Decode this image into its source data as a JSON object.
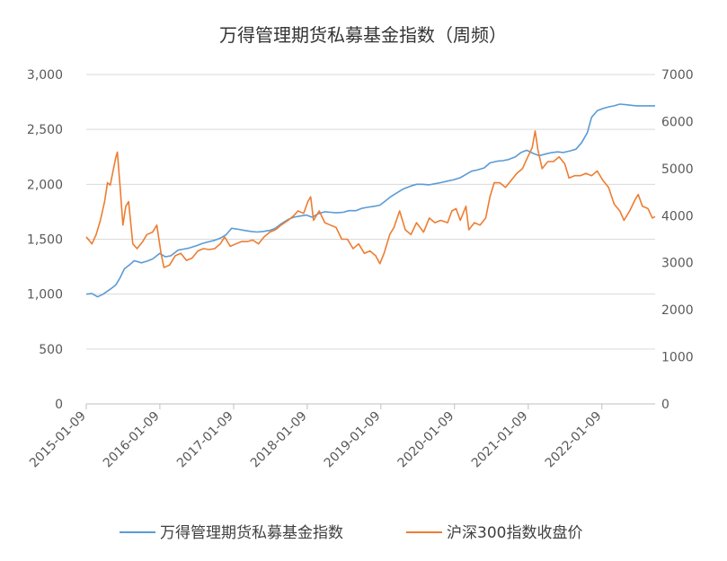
{
  "chart_data": {
    "type": "line",
    "title": "万得管理期货私募基金指数（周频）",
    "legend_position": "bottom",
    "grid": "horizontal",
    "x_tick_labels": [
      "2015-01-09",
      "2016-01-09",
      "2017-01-09",
      "2018-01-09",
      "2019-01-09",
      "2020-01-09",
      "2021-01-09",
      "2022-01-09"
    ],
    "y_left": {
      "range": [
        0,
        3000
      ],
      "ticks": [
        0,
        500,
        1000,
        1500,
        2000,
        2500,
        3000
      ],
      "tick_labels": [
        "0",
        "500",
        "1,000",
        "1,500",
        "2,000",
        "2,500",
        "3,000"
      ]
    },
    "y_right": {
      "range": [
        0,
        7000
      ],
      "ticks": [
        0,
        1000,
        2000,
        3000,
        4000,
        5000,
        6000,
        7000
      ],
      "tick_labels": [
        "0",
        "1000",
        "2000",
        "3000",
        "4000",
        "5000",
        "6000",
        "7000"
      ]
    },
    "series": [
      {
        "name": "万得管理期货私募基金指数",
        "axis": "left",
        "color": "#5B9BD5",
        "points": [
          [
            "2015-01-09",
            1000
          ],
          [
            "2015-02-06",
            1005
          ],
          [
            "2015-03-06",
            975
          ],
          [
            "2015-04-03",
            1000
          ],
          [
            "2015-05-08",
            1045
          ],
          [
            "2015-06-05",
            1085
          ],
          [
            "2015-06-26",
            1150
          ],
          [
            "2015-07-17",
            1230
          ],
          [
            "2015-08-14",
            1270
          ],
          [
            "2015-09-04",
            1305
          ],
          [
            "2015-10-09",
            1285
          ],
          [
            "2015-11-06",
            1300
          ],
          [
            "2015-12-04",
            1320
          ],
          [
            "2016-01-08",
            1370
          ],
          [
            "2016-02-05",
            1340
          ],
          [
            "2016-03-04",
            1350
          ],
          [
            "2016-04-08",
            1400
          ],
          [
            "2016-05-06",
            1410
          ],
          [
            "2016-06-03",
            1420
          ],
          [
            "2016-07-08",
            1440
          ],
          [
            "2016-08-05",
            1460
          ],
          [
            "2016-09-02",
            1475
          ],
          [
            "2016-10-07",
            1490
          ],
          [
            "2016-11-04",
            1510
          ],
          [
            "2016-12-02",
            1540
          ],
          [
            "2016-12-30",
            1600
          ],
          [
            "2017-02-03",
            1590
          ],
          [
            "2017-03-03",
            1580
          ],
          [
            "2017-04-07",
            1570
          ],
          [
            "2017-05-05",
            1565
          ],
          [
            "2017-06-02",
            1570
          ],
          [
            "2017-07-07",
            1580
          ],
          [
            "2017-08-04",
            1600
          ],
          [
            "2017-09-01",
            1640
          ],
          [
            "2017-10-06",
            1680
          ],
          [
            "2017-11-03",
            1700
          ],
          [
            "2017-12-01",
            1710
          ],
          [
            "2018-01-05",
            1720
          ],
          [
            "2018-02-02",
            1700
          ],
          [
            "2018-03-02",
            1730
          ],
          [
            "2018-04-06",
            1750
          ],
          [
            "2018-05-04",
            1745
          ],
          [
            "2018-06-01",
            1740
          ],
          [
            "2018-07-06",
            1745
          ],
          [
            "2018-08-03",
            1760
          ],
          [
            "2018-09-07",
            1760
          ],
          [
            "2018-10-05",
            1780
          ],
          [
            "2018-11-02",
            1790
          ],
          [
            "2018-12-07",
            1800
          ],
          [
            "2019-01-04",
            1810
          ],
          [
            "2019-02-01",
            1850
          ],
          [
            "2019-03-01",
            1890
          ],
          [
            "2019-04-05",
            1930
          ],
          [
            "2019-05-03",
            1960
          ],
          [
            "2019-06-07",
            1985
          ],
          [
            "2019-07-05",
            2000
          ],
          [
            "2019-08-02",
            2000
          ],
          [
            "2019-09-06",
            1995
          ],
          [
            "2019-10-04",
            2005
          ],
          [
            "2019-11-01",
            2015
          ],
          [
            "2019-12-06",
            2030
          ],
          [
            "2020-01-03",
            2040
          ],
          [
            "2020-02-07",
            2060
          ],
          [
            "2020-03-06",
            2090
          ],
          [
            "2020-04-03",
            2120
          ],
          [
            "2020-05-01",
            2130
          ],
          [
            "2020-06-05",
            2150
          ],
          [
            "2020-07-03",
            2195
          ],
          [
            "2020-08-07",
            2210
          ],
          [
            "2020-09-04",
            2215
          ],
          [
            "2020-10-02",
            2225
          ],
          [
            "2020-11-06",
            2250
          ],
          [
            "2020-12-04",
            2290
          ],
          [
            "2021-01-01",
            2310
          ],
          [
            "2021-02-05",
            2280
          ],
          [
            "2021-03-05",
            2260
          ],
          [
            "2021-04-02",
            2275
          ],
          [
            "2021-05-07",
            2290
          ],
          [
            "2021-06-04",
            2295
          ],
          [
            "2021-07-02",
            2290
          ],
          [
            "2021-08-06",
            2305
          ],
          [
            "2021-09-03",
            2320
          ],
          [
            "2021-10-01",
            2380
          ],
          [
            "2021-10-29",
            2470
          ],
          [
            "2021-11-19",
            2610
          ],
          [
            "2021-12-17",
            2670
          ],
          [
            "2022-01-14",
            2690
          ],
          [
            "2022-02-11",
            2705
          ],
          [
            "2022-03-11",
            2715
          ],
          [
            "2022-04-08",
            2730
          ],
          [
            "2022-05-06",
            2725
          ],
          [
            "2022-06-03",
            2720
          ],
          [
            "2022-07-01",
            2715
          ],
          [
            "2022-08-05",
            2715
          ],
          [
            "2022-09-02",
            2715
          ],
          [
            "2022-09-30",
            2715
          ]
        ]
      },
      {
        "name": "沪深300指数收盘价",
        "axis": "right",
        "color": "#ED7D31",
        "points": [
          [
            "2015-01-09",
            3550
          ],
          [
            "2015-02-06",
            3400
          ],
          [
            "2015-02-27",
            3600
          ],
          [
            "2015-03-20",
            3900
          ],
          [
            "2015-04-10",
            4300
          ],
          [
            "2015-04-24",
            4700
          ],
          [
            "2015-05-08",
            4650
          ],
          [
            "2015-05-22",
            4950
          ],
          [
            "2015-06-05",
            5250
          ],
          [
            "2015-06-12",
            5350
          ],
          [
            "2015-06-26",
            4600
          ],
          [
            "2015-07-10",
            3800
          ],
          [
            "2015-07-24",
            4200
          ],
          [
            "2015-08-07",
            4300
          ],
          [
            "2015-08-28",
            3400
          ],
          [
            "2015-09-18",
            3300
          ],
          [
            "2015-10-16",
            3450
          ],
          [
            "2015-11-06",
            3600
          ],
          [
            "2015-12-04",
            3650
          ],
          [
            "2015-12-25",
            3800
          ],
          [
            "2016-01-15",
            3200
          ],
          [
            "2016-01-29",
            2900
          ],
          [
            "2016-02-26",
            2950
          ],
          [
            "2016-03-25",
            3150
          ],
          [
            "2016-04-22",
            3200
          ],
          [
            "2016-05-20",
            3050
          ],
          [
            "2016-06-17",
            3100
          ],
          [
            "2016-07-15",
            3250
          ],
          [
            "2016-08-12",
            3300
          ],
          [
            "2016-09-09",
            3280
          ],
          [
            "2016-10-07",
            3300
          ],
          [
            "2016-11-04",
            3400
          ],
          [
            "2016-11-25",
            3550
          ],
          [
            "2016-12-23",
            3350
          ],
          [
            "2017-01-20",
            3400
          ],
          [
            "2017-02-17",
            3450
          ],
          [
            "2017-03-17",
            3450
          ],
          [
            "2017-04-14",
            3480
          ],
          [
            "2017-05-12",
            3400
          ],
          [
            "2017-06-09",
            3550
          ],
          [
            "2017-07-07",
            3650
          ],
          [
            "2017-08-04",
            3700
          ],
          [
            "2017-09-01",
            3800
          ],
          [
            "2017-10-06",
            3900
          ],
          [
            "2017-11-03",
            4000
          ],
          [
            "2017-11-24",
            4100
          ],
          [
            "2017-12-22",
            4050
          ],
          [
            "2018-01-12",
            4300
          ],
          [
            "2018-01-26",
            4400
          ],
          [
            "2018-02-09",
            3900
          ],
          [
            "2018-03-09",
            4100
          ],
          [
            "2018-04-06",
            3850
          ],
          [
            "2018-05-04",
            3800
          ],
          [
            "2018-06-01",
            3750
          ],
          [
            "2018-06-29",
            3500
          ],
          [
            "2018-07-27",
            3500
          ],
          [
            "2018-08-24",
            3300
          ],
          [
            "2018-09-21",
            3400
          ],
          [
            "2018-10-19",
            3200
          ],
          [
            "2018-11-16",
            3250
          ],
          [
            "2018-12-14",
            3150
          ],
          [
            "2019-01-04",
            2980
          ],
          [
            "2019-01-25",
            3200
          ],
          [
            "2019-02-22",
            3600
          ],
          [
            "2019-03-15",
            3750
          ],
          [
            "2019-04-12",
            4100
          ],
          [
            "2019-05-10",
            3700
          ],
          [
            "2019-06-07",
            3600
          ],
          [
            "2019-07-05",
            3850
          ],
          [
            "2019-08-09",
            3650
          ],
          [
            "2019-09-06",
            3950
          ],
          [
            "2019-10-04",
            3850
          ],
          [
            "2019-11-01",
            3900
          ],
          [
            "2019-12-06",
            3850
          ],
          [
            "2019-12-27",
            4100
          ],
          [
            "2020-01-17",
            4150
          ],
          [
            "2020-02-07",
            3900
          ],
          [
            "2020-03-06",
            4200
          ],
          [
            "2020-03-20",
            3700
          ],
          [
            "2020-04-17",
            3850
          ],
          [
            "2020-05-15",
            3800
          ],
          [
            "2020-06-12",
            3950
          ],
          [
            "2020-07-03",
            4400
          ],
          [
            "2020-07-24",
            4700
          ],
          [
            "2020-08-21",
            4700
          ],
          [
            "2020-09-18",
            4600
          ],
          [
            "2020-10-16",
            4750
          ],
          [
            "2020-11-13",
            4900
          ],
          [
            "2020-12-11",
            5000
          ],
          [
            "2021-01-01",
            5200
          ],
          [
            "2021-01-29",
            5450
          ],
          [
            "2021-02-12",
            5800
          ],
          [
            "2021-02-26",
            5400
          ],
          [
            "2021-03-19",
            5000
          ],
          [
            "2021-04-16",
            5150
          ],
          [
            "2021-05-14",
            5150
          ],
          [
            "2021-06-11",
            5250
          ],
          [
            "2021-07-09",
            5100
          ],
          [
            "2021-07-30",
            4800
          ],
          [
            "2021-08-27",
            4850
          ],
          [
            "2021-09-24",
            4850
          ],
          [
            "2021-10-22",
            4900
          ],
          [
            "2021-11-19",
            4850
          ],
          [
            "2021-12-17",
            4950
          ],
          [
            "2022-01-14",
            4750
          ],
          [
            "2022-02-11",
            4600
          ],
          [
            "2022-03-11",
            4250
          ],
          [
            "2022-04-08",
            4100
          ],
          [
            "2022-04-29",
            3900
          ],
          [
            "2022-05-27",
            4100
          ],
          [
            "2022-06-24",
            4350
          ],
          [
            "2022-07-08",
            4450
          ],
          [
            "2022-07-29",
            4200
          ],
          [
            "2022-08-26",
            4150
          ],
          [
            "2022-09-16",
            3950
          ],
          [
            "2022-09-30",
            3980
          ]
        ]
      }
    ]
  }
}
